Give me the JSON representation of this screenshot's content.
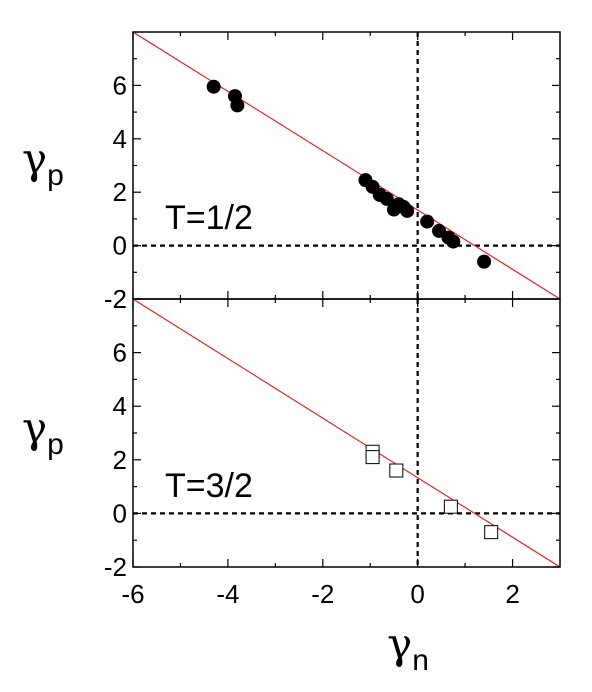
{
  "chart_data": [
    {
      "type": "scatter",
      "annotation": "T=1/2",
      "ylabel": "γp",
      "xlim": [
        -6,
        3
      ],
      "ylim": [
        -2,
        8
      ],
      "xticks": [
        -6,
        -4,
        -2,
        0,
        2
      ],
      "yticks": [
        -2,
        0,
        2,
        4,
        6
      ],
      "ytick_labels": [
        "-2",
        "0",
        "2",
        "4",
        "6"
      ],
      "marker": "filled-circle",
      "marker_color": "#000000",
      "fit_line_color": "#e0282a",
      "fit_line": {
        "x": [
          -6,
          3
        ],
        "y": [
          8.0,
          -2.0
        ]
      },
      "zero_lines": true,
      "points": [
        {
          "x": -4.3,
          "y": 5.95
        },
        {
          "x": -3.85,
          "y": 5.6
        },
        {
          "x": -3.8,
          "y": 5.25
        },
        {
          "x": -1.1,
          "y": 2.45
        },
        {
          "x": -0.95,
          "y": 2.2
        },
        {
          "x": -0.8,
          "y": 1.9
        },
        {
          "x": -0.65,
          "y": 1.75
        },
        {
          "x": -0.5,
          "y": 1.35
        },
        {
          "x": -0.4,
          "y": 1.55
        },
        {
          "x": -0.3,
          "y": 1.45
        },
        {
          "x": -0.22,
          "y": 1.3
        },
        {
          "x": 0.2,
          "y": 0.9
        },
        {
          "x": 0.45,
          "y": 0.55
        },
        {
          "x": 0.65,
          "y": 0.3
        },
        {
          "x": 0.75,
          "y": 0.15
        },
        {
          "x": 1.4,
          "y": -0.6
        }
      ]
    },
    {
      "type": "scatter",
      "annotation": "T=3/2",
      "xlabel": "γn",
      "ylabel": "γp",
      "xlim": [
        -6,
        3
      ],
      "ylim": [
        -2,
        8
      ],
      "xticks": [
        -6,
        -4,
        -2,
        0,
        2
      ],
      "xtick_labels": [
        "-6",
        "-4",
        "-2",
        "0",
        "2"
      ],
      "yticks": [
        -2,
        0,
        2,
        4,
        6
      ],
      "ytick_labels": [
        "-2",
        "0",
        "2",
        "4",
        "6"
      ],
      "marker": "open-square",
      "marker_color": "#000000",
      "fit_line_color": "#e0282a",
      "fit_line": {
        "x": [
          -6,
          3
        ],
        "y": [
          8.0,
          -2.0
        ]
      },
      "zero_lines": true,
      "points": [
        {
          "x": -0.95,
          "y": 2.3
        },
        {
          "x": -0.95,
          "y": 2.1
        },
        {
          "x": -0.45,
          "y": 1.6
        },
        {
          "x": 0.7,
          "y": 0.25
        },
        {
          "x": 1.55,
          "y": -0.7
        }
      ]
    }
  ]
}
